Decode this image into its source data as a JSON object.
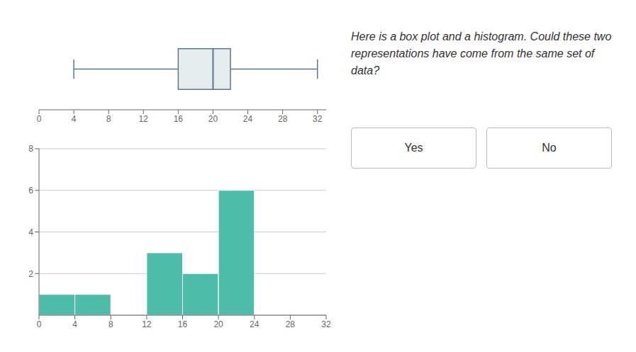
{
  "chart_data": [
    {
      "type": "box",
      "whisker_low": 4,
      "q1": 16,
      "median": 20,
      "q3": 22,
      "whisker_high": 32,
      "xlim": [
        0,
        33
      ],
      "xticks": [
        0,
        4,
        8,
        12,
        16,
        20,
        24,
        28,
        32
      ],
      "color": "#5a7a8a",
      "annotations": [
        "Here is a box plot and a histogram. Could these two\nrepresentations have come from the same set of\ndata?",
        "Yes",
        "No"
      ]
    },
    {
      "type": "histogram",
      "bins": [
        0,
        4,
        8,
        12,
        16,
        20,
        24,
        28,
        32
      ],
      "values": [
        1,
        1,
        0,
        3,
        2,
        6,
        0,
        0
      ],
      "color": "#4DBDAA",
      "xlim": [
        0,
        32
      ],
      "ylim": [
        0,
        8
      ],
      "xticks": [
        0,
        4,
        8,
        12,
        16,
        20,
        24,
        28,
        32
      ],
      "yticks": [
        2,
        4,
        6,
        8
      ],
      "grid": true
    }
  ]
}
